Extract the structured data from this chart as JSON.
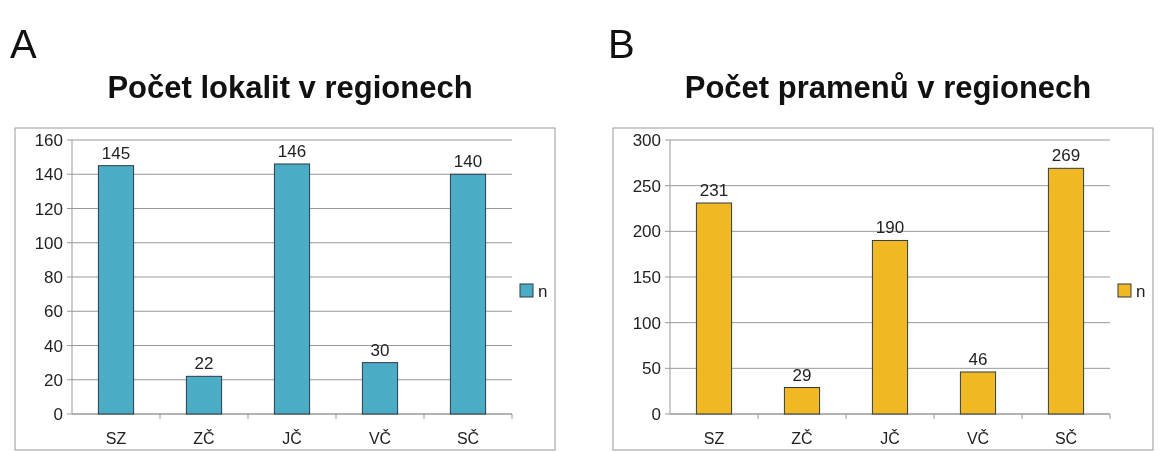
{
  "chart_data": [
    {
      "type": "bar",
      "title": "Počet lokalit v regionech",
      "annotations": [
        "A"
      ],
      "categories": [
        "SZ",
        "ZČ",
        "JČ",
        "VČ",
        "SČ"
      ],
      "series": [
        {
          "name": "n",
          "color": "#4bacc6",
          "values": [
            145,
            22,
            146,
            30,
            140
          ]
        }
      ],
      "ylim": [
        0,
        160
      ],
      "yticks": [
        0,
        20,
        40,
        60,
        80,
        100,
        120,
        140,
        160
      ],
      "grid": "y",
      "legend": "right",
      "data_labels": true
    },
    {
      "type": "bar",
      "title": "Počet pramenů v regionech",
      "annotations": [
        "B"
      ],
      "categories": [
        "SZ",
        "ZČ",
        "JČ",
        "VČ",
        "SČ"
      ],
      "series": [
        {
          "name": "n",
          "color": "#f0b823",
          "values": [
            231,
            29,
            190,
            46,
            269
          ]
        }
      ],
      "ylim": [
        0,
        300
      ],
      "yticks": [
        0,
        50,
        100,
        150,
        200,
        250,
        300
      ],
      "grid": "y",
      "legend": "right",
      "data_labels": true
    }
  ]
}
